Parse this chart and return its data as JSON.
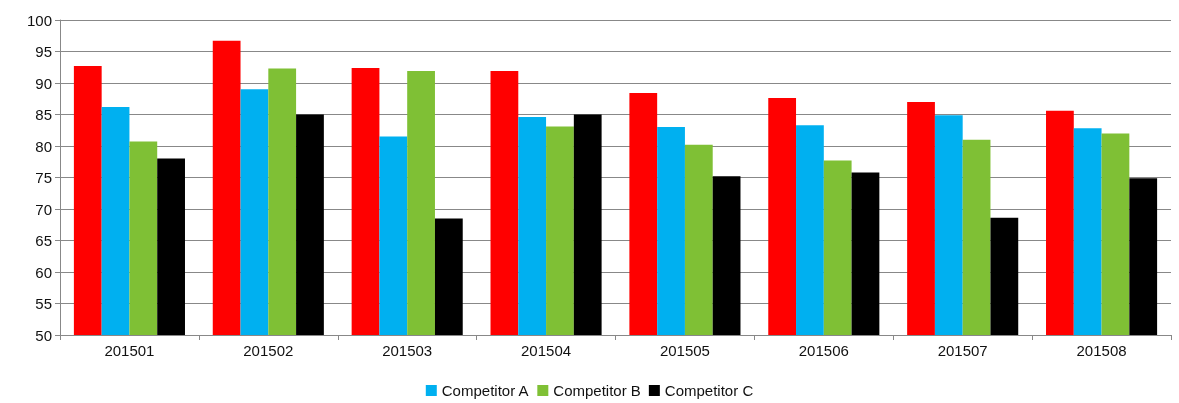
{
  "chart_data": {
    "type": "bar",
    "categories": [
      "201501",
      "201502",
      "201503",
      "201504",
      "201505",
      "201506",
      "201507",
      "201508"
    ],
    "series": [
      {
        "color": "#ff0000",
        "values": [
          92.7,
          96.7,
          92.4,
          91.9,
          88.4,
          87.6,
          87.0,
          85.6
        ]
      },
      {
        "name": "Competitor A",
        "color": "#00b0f0",
        "values": [
          86.2,
          89.0,
          81.5,
          84.6,
          83.0,
          83.3,
          84.9,
          82.8
        ]
      },
      {
        "name": "Competitor B",
        "color": "#7fc035",
        "values": [
          80.7,
          92.3,
          91.9,
          83.1,
          80.2,
          77.7,
          81.0,
          82.0
        ]
      },
      {
        "name": "Competitor C",
        "color": "#000000",
        "values": [
          78.0,
          85.0,
          68.5,
          85.0,
          75.2,
          75.8,
          68.6,
          74.9
        ]
      }
    ],
    "ylim": [
      50,
      100
    ],
    "yticks": [
      50,
      55,
      60,
      65,
      70,
      75,
      80,
      85,
      90,
      95,
      100
    ],
    "grid": "y",
    "legend": "bottom"
  }
}
